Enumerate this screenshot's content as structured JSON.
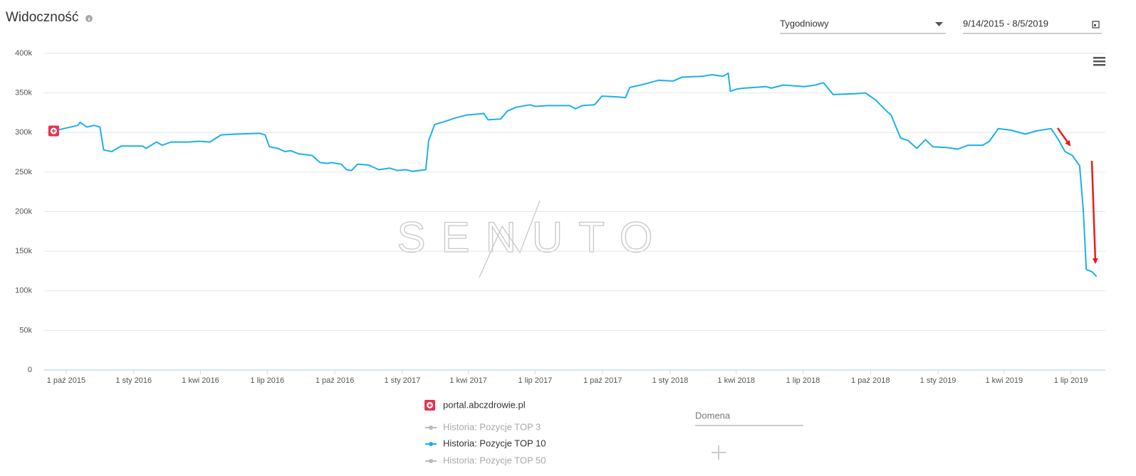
{
  "header": {
    "title": "Widoczność",
    "period": "Tygodniowy",
    "date_range": "9/14/2015 - 8/5/2019"
  },
  "watermark": "SENUTO",
  "chart_data": {
    "type": "line",
    "domain": "portal.abczdrowie.pl",
    "x": [
      "2015-09-14",
      "2015-09-28",
      "2015-10-17",
      "2015-10-20",
      "2015-10-29",
      "2015-11-08",
      "2015-11-16",
      "2015-11-21",
      "2015-12-02",
      "2015-12-15",
      "2016-01-13",
      "2016-01-18",
      "2016-02-01",
      "2016-02-09",
      "2016-02-21",
      "2016-03-16",
      "2016-03-30",
      "2016-04-14",
      "2016-04-29",
      "2016-05-18",
      "2016-06-21",
      "2016-06-28",
      "2016-07-04",
      "2016-07-15",
      "2016-07-25",
      "2016-08-02",
      "2016-08-13",
      "2016-08-31",
      "2016-09-11",
      "2016-09-21",
      "2016-09-26",
      "2016-10-10",
      "2016-10-17",
      "2016-10-24",
      "2016-11-01",
      "2016-11-16",
      "2016-11-30",
      "2016-12-15",
      "2016-12-25",
      "2017-01-06",
      "2017-01-15",
      "2017-02-02",
      "2017-02-06",
      "2017-02-14",
      "2017-02-28",
      "2017-03-13",
      "2017-03-29",
      "2017-04-22",
      "2017-04-28",
      "2017-05-15",
      "2017-05-24",
      "2017-06-05",
      "2017-06-24",
      "2017-07-01",
      "2017-07-19",
      "2017-08-17",
      "2017-08-25",
      "2017-09-03",
      "2017-09-20",
      "2017-09-30",
      "2017-10-22",
      "2017-11-01",
      "2017-11-07",
      "2017-11-22",
      "2017-12-04",
      "2017-12-16",
      "2018-01-05",
      "2018-01-17",
      "2018-02-13",
      "2018-02-27",
      "2018-03-14",
      "2018-03-21",
      "2018-03-24",
      "2018-04-02",
      "2018-04-12",
      "2018-05-11",
      "2018-05-19",
      "2018-06-04",
      "2018-07-03",
      "2018-07-18",
      "2018-07-29",
      "2018-08-11",
      "2018-09-09",
      "2018-09-24",
      "2018-10-08",
      "2018-10-23",
      "2018-10-29",
      "2018-11-11",
      "2018-11-21",
      "2018-12-03",
      "2018-12-15",
      "2018-12-25",
      "2019-01-13",
      "2019-01-28",
      "2019-02-11",
      "2019-03-03",
      "2019-03-12",
      "2019-03-24",
      "2019-04-10",
      "2019-04-30",
      "2019-05-15",
      "2019-06-04",
      "2019-06-14",
      "2019-06-23",
      "2019-07-03",
      "2019-07-13",
      "2019-07-18",
      "2019-07-22",
      "2019-07-30",
      "2019-08-05"
    ],
    "series": [
      {
        "name": "Historia: Pozycje TOP 10",
        "color": "#1cb0ec",
        "values": [
          302000,
          305000,
          309000,
          313000,
          307000,
          309000,
          307000,
          278000,
          276000,
          283000,
          283000,
          280000,
          288000,
          284000,
          288000,
          288000,
          289000,
          288000,
          297000,
          298000,
          299000,
          297000,
          282000,
          280000,
          276000,
          277000,
          273000,
          271000,
          262000,
          261000,
          262000,
          260000,
          253000,
          252000,
          260000,
          259000,
          253000,
          255000,
          252000,
          253000,
          251000,
          253000,
          290000,
          310000,
          314000,
          318000,
          322000,
          324000,
          316000,
          317000,
          327000,
          332000,
          335000,
          333000,
          334000,
          334000,
          330000,
          334000,
          335000,
          346000,
          345000,
          344000,
          357000,
          360000,
          363000,
          366000,
          365000,
          370000,
          371000,
          373000,
          371000,
          375000,
          352000,
          355000,
          356000,
          358000,
          356000,
          360000,
          358000,
          360000,
          363000,
          348000,
          349000,
          350000,
          341000,
          327000,
          322000,
          293000,
          290000,
          280000,
          291000,
          282000,
          281000,
          279000,
          284000,
          284000,
          289000,
          305000,
          303000,
          298000,
          302000,
          305000,
          291000,
          276000,
          271000,
          258000,
          200000,
          127000,
          124000,
          118000
        ]
      }
    ],
    "inactive_series": [
      "Historia: Pozycje TOP 3",
      "Historia: Pozycje TOP 50"
    ],
    "xlim": [
      "2015-09-01",
      "2019-08-17"
    ],
    "xticks": [
      {
        "value": "2015-10-01",
        "label": "1 paź 2015"
      },
      {
        "value": "2016-01-01",
        "label": "1 sty 2016"
      },
      {
        "value": "2016-04-01",
        "label": "1 kwi 2016"
      },
      {
        "value": "2016-07-01",
        "label": "1 lip 2016"
      },
      {
        "value": "2016-10-01",
        "label": "1 paź 2016"
      },
      {
        "value": "2017-01-01",
        "label": "1 sty 2017"
      },
      {
        "value": "2017-04-01",
        "label": "1 kwi 2017"
      },
      {
        "value": "2017-07-01",
        "label": "1 lip 2017"
      },
      {
        "value": "2017-10-01",
        "label": "1 paź 2017"
      },
      {
        "value": "2018-01-01",
        "label": "1 sty 2018"
      },
      {
        "value": "2018-04-01",
        "label": "1 kwi 2018"
      },
      {
        "value": "2018-07-01",
        "label": "1 lip 2018"
      },
      {
        "value": "2018-10-01",
        "label": "1 paź 2018"
      },
      {
        "value": "2019-01-01",
        "label": "1 sty 2019"
      },
      {
        "value": "2019-04-01",
        "label": "1 kwi 2019"
      },
      {
        "value": "2019-07-01",
        "label": "1 lip 2019"
      }
    ],
    "ylim": [
      0,
      400000
    ],
    "yticks": [
      0,
      {
        "value": 50000,
        "label": "50k"
      },
      {
        "value": 100000,
        "label": "100k"
      },
      {
        "value": 150000,
        "label": "150k"
      },
      {
        "value": 200000,
        "label": "200k"
      },
      {
        "value": 250000,
        "label": "250k"
      },
      {
        "value": 300000,
        "label": "300k"
      },
      {
        "value": 350000,
        "label": "350k"
      },
      {
        "value": 400000,
        "label": "400k"
      }
    ],
    "grid": true
  },
  "domain_input": "Domena"
}
